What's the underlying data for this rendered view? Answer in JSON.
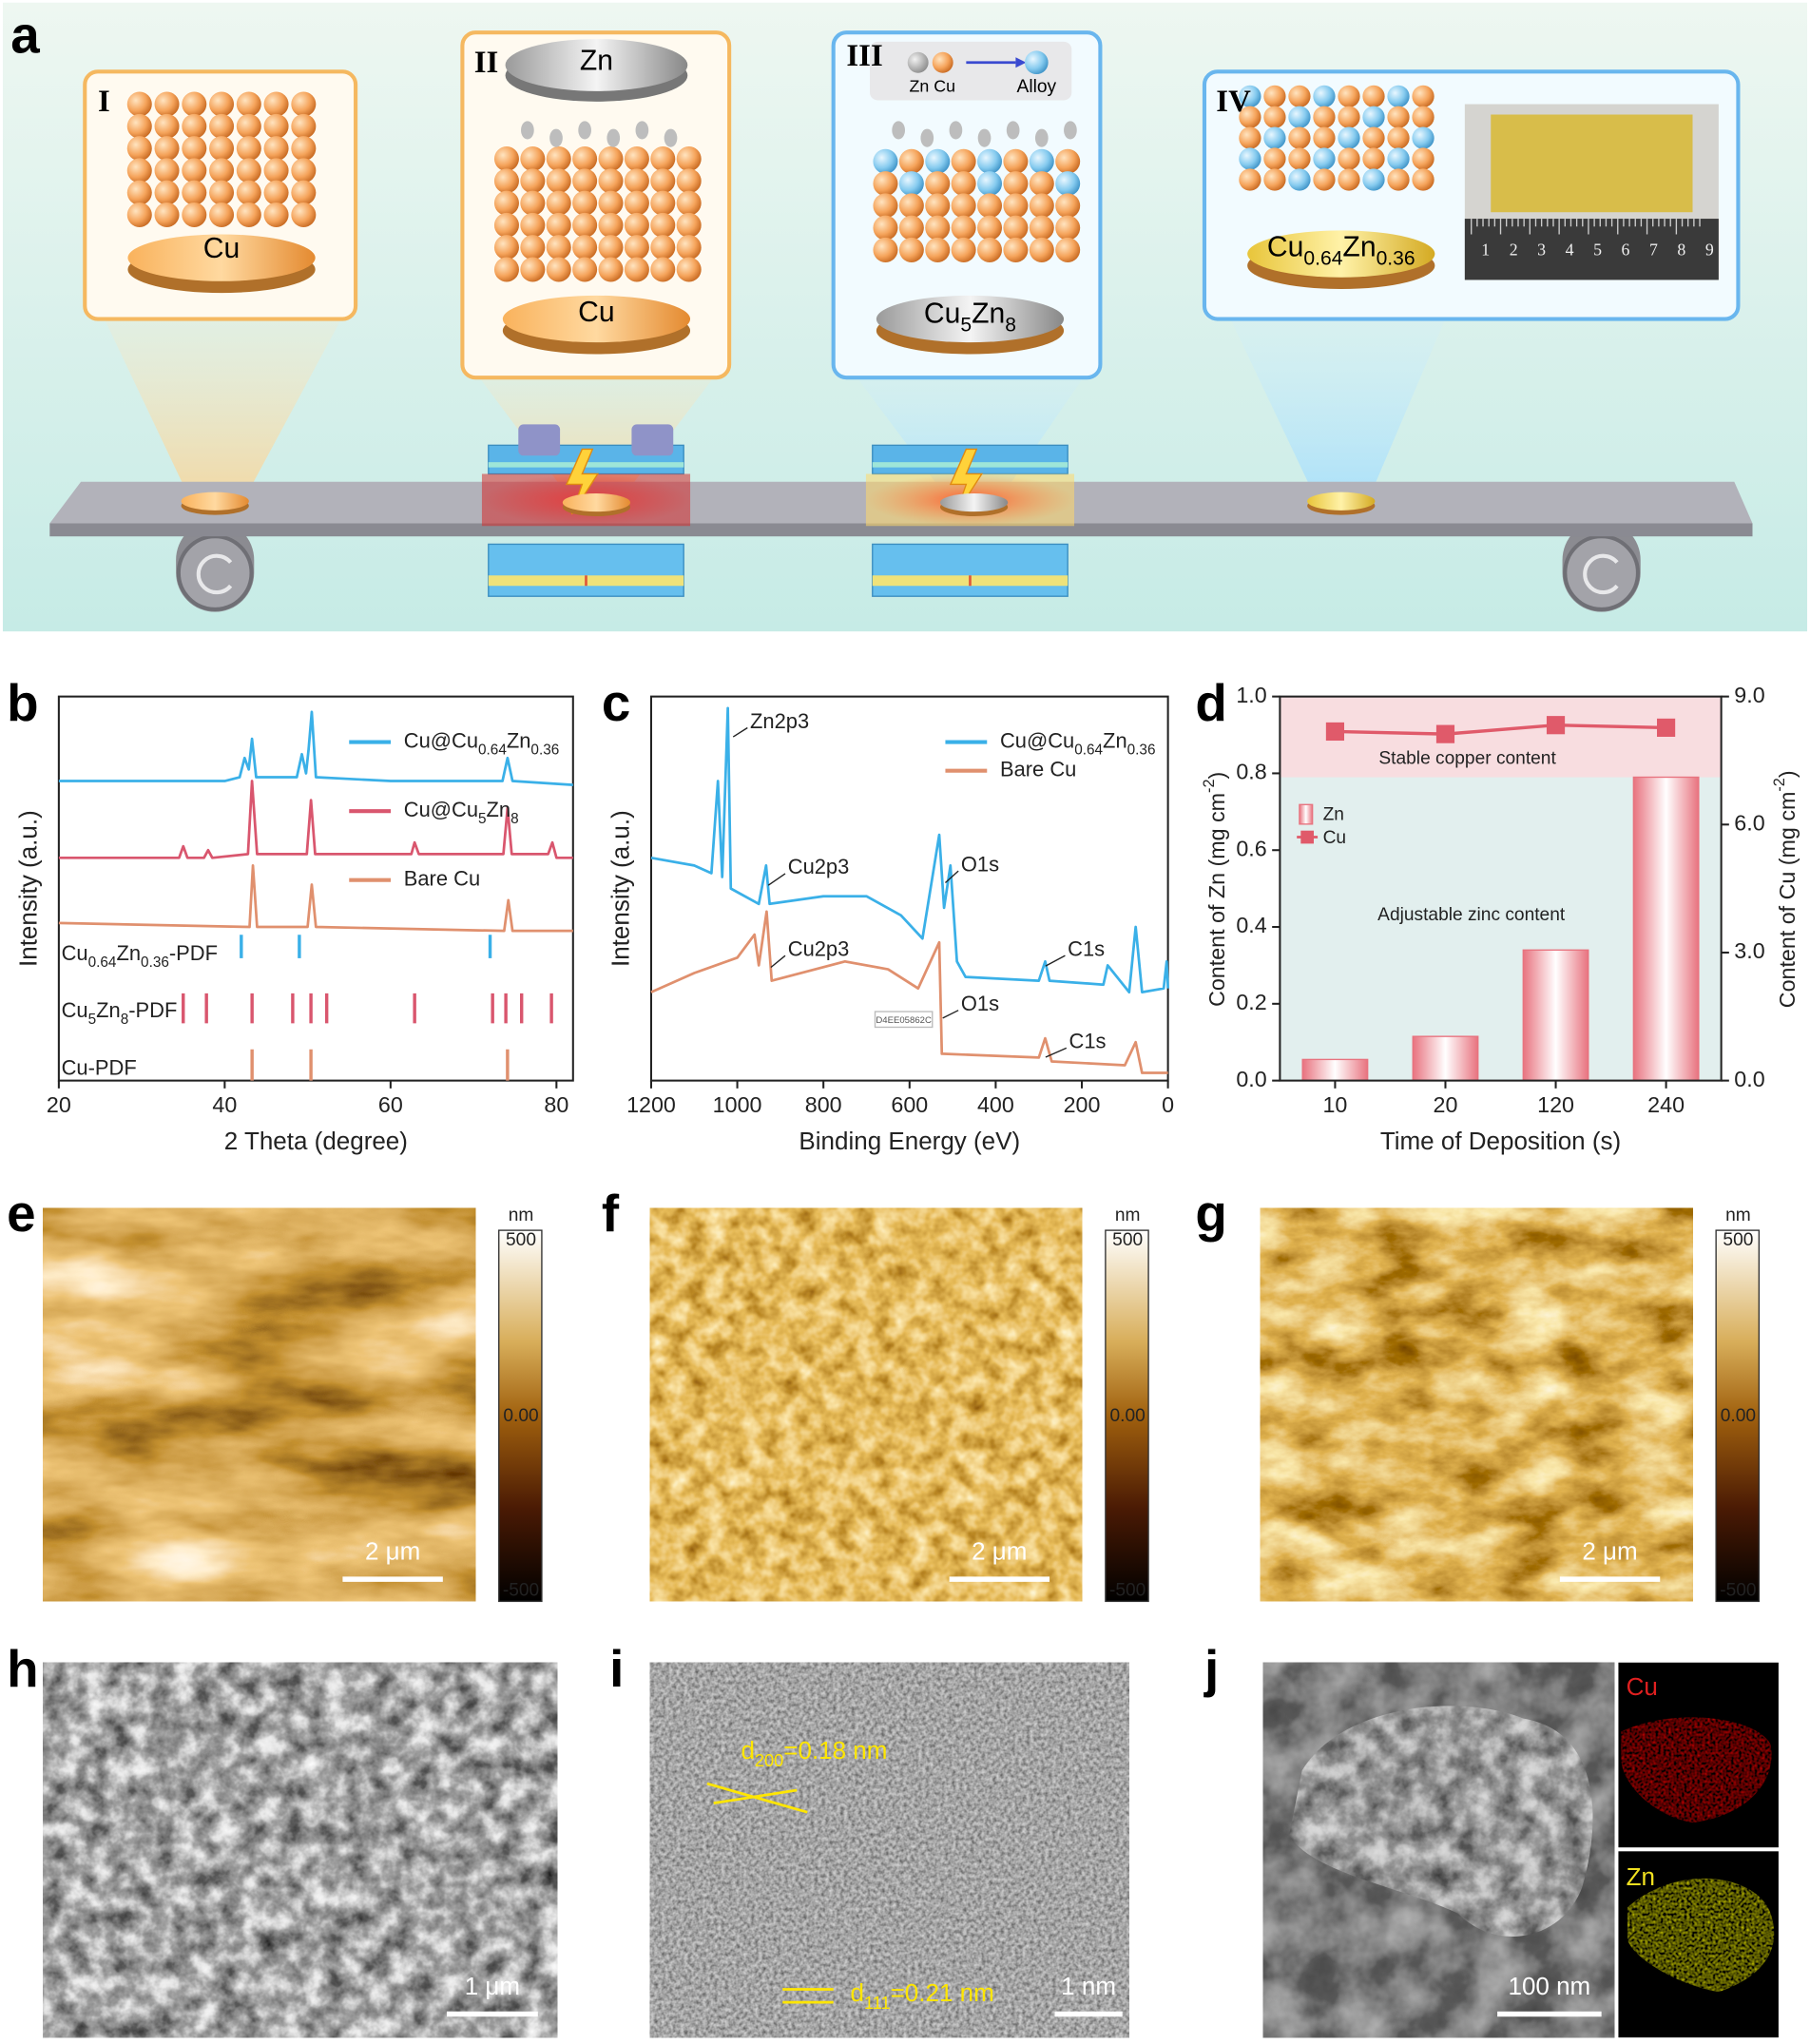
{
  "panel_labels": [
    "a",
    "b",
    "c",
    "d",
    "e",
    "f",
    "g",
    "h",
    "i",
    "j"
  ],
  "schematic": {
    "stages": [
      "I",
      "II",
      "III",
      "IV"
    ],
    "cu_disc": "Cu",
    "zn_target": "Zn",
    "cu_disc_2": "Cu",
    "legend": [
      "Zn Cu",
      "Alloy"
    ],
    "alloy_disc": [
      "Cu",
      "5",
      "Zn",
      "8"
    ],
    "final_disc": [
      "Cu",
      "0.64",
      "Zn",
      "0.36"
    ],
    "ruler": [
      "1",
      "2",
      "3",
      "4",
      "5",
      "6",
      "7",
      "8",
      "9"
    ]
  },
  "chart_data": [
    {
      "type": "line",
      "xlabel": "2 Theta (degree)",
      "ylabel": "Intensity (a.u.)",
      "xlim": [
        20,
        82
      ],
      "xticks": [
        20,
        40,
        60,
        80
      ],
      "ylim": [
        0,
        10
      ],
      "series": [
        {
          "name": [
            "Cu@Cu",
            "0.64",
            "Zn",
            "0.36"
          ],
          "color": "#3ab0e8",
          "x": [
            20,
            30,
            40,
            41.8,
            42.4,
            42.9,
            43.3,
            43.8,
            48.7,
            49.3,
            49.8,
            50.1,
            50.5,
            51.0,
            60,
            73.5,
            74.1,
            74.7,
            82
          ],
          "values": [
            7.8,
            7.8,
            7.8,
            7.9,
            8.4,
            8.1,
            8.9,
            7.9,
            7.9,
            8.5,
            8.0,
            8.6,
            9.6,
            7.9,
            7.8,
            7.8,
            8.4,
            7.8,
            7.7
          ]
        },
        {
          "name": [
            "Cu@Cu",
            "5",
            "Zn",
            "8"
          ],
          "color": "#d9566e",
          "x": [
            20,
            34.5,
            35,
            35.5,
            37.5,
            38,
            38.5,
            42.8,
            43.3,
            43.9,
            49.9,
            50.4,
            50.9,
            62.5,
            62.9,
            63.4,
            73.6,
            74.1,
            74.6,
            79,
            79.5,
            80,
            82
          ],
          "values": [
            5.8,
            5.8,
            6.1,
            5.8,
            5.8,
            6.0,
            5.8,
            5.9,
            7.8,
            5.9,
            5.9,
            7.3,
            5.9,
            5.9,
            6.2,
            5.9,
            5.9,
            7.1,
            5.9,
            5.9,
            6.2,
            5.8,
            5.8
          ]
        },
        {
          "name": [
            "Bare Cu"
          ],
          "color": "#e0906e",
          "x": [
            20,
            43,
            43.4,
            43.9,
            50,
            50.5,
            51,
            73.7,
            74.2,
            74.7,
            82
          ],
          "values": [
            4.1,
            4.0,
            5.6,
            4.0,
            4.0,
            5.1,
            4.0,
            3.9,
            4.7,
            3.9,
            3.9
          ]
        }
      ],
      "reference_patterns": [
        {
          "name": [
            "Cu",
            "0.64",
            "Zn",
            "0.36",
            "-PDF"
          ],
          "color": "#3ab0e8",
          "positions": [
            42.0,
            49.0,
            72.0
          ]
        },
        {
          "name": [
            "Cu",
            "5",
            "Zn",
            "8",
            "-PDF"
          ],
          "color": "#d9566e",
          "positions": [
            35.0,
            37.8,
            43.3,
            48.2,
            50.4,
            52.3,
            62.9,
            72.3,
            73.9,
            75.8,
            79.4
          ]
        },
        {
          "name": [
            "Cu-PDF"
          ],
          "color": "#e0906e",
          "positions": [
            43.3,
            50.4,
            74.1
          ]
        }
      ]
    },
    {
      "type": "line",
      "xlabel": "Binding Energy (eV)",
      "ylabel": "Intensity (a.u.)",
      "xlim": [
        1200,
        0
      ],
      "xticks": [
        1200,
        1000,
        800,
        600,
        400,
        200,
        0
      ],
      "ylim": [
        0,
        10
      ],
      "series": [
        {
          "name": [
            "Cu@Cu",
            "0.64",
            "Zn",
            "0.36"
          ],
          "color": "#3ab0e8",
          "x": [
            1200,
            1100,
            1060,
            1045,
            1035,
            1022,
            1015,
            950,
            933,
            925,
            800,
            700,
            620,
            570,
            531,
            520,
            505,
            490,
            470,
            300,
            285,
            275,
            150,
            140,
            90,
            75,
            60,
            10,
            3,
            0
          ],
          "values": [
            5.8,
            5.6,
            5.4,
            7.8,
            5.3,
            9.7,
            5.0,
            4.6,
            5.6,
            4.6,
            4.8,
            4.8,
            4.3,
            3.7,
            6.4,
            4.5,
            5.6,
            3.1,
            2.7,
            2.6,
            3.1,
            2.6,
            2.5,
            3.0,
            2.3,
            4.0,
            2.3,
            2.4,
            3.1,
            2.4
          ]
        },
        {
          "name": [
            "Bare Cu"
          ],
          "color": "#e0906e",
          "x": [
            1200,
            1100,
            1000,
            960,
            950,
            932,
            920,
            750,
            650,
            580,
            531,
            525,
            300,
            285,
            270,
            100,
            75,
            60,
            0
          ],
          "values": [
            2.3,
            2.8,
            3.2,
            3.8,
            3.0,
            4.4,
            2.6,
            3.1,
            2.9,
            2.4,
            3.6,
            0.7,
            0.6,
            1.1,
            0.5,
            0.4,
            1.0,
            0.2,
            0.2
          ]
        }
      ],
      "annotations": [
        "Zn2p3",
        "Cu2p3",
        "O1s",
        "C1s",
        "Cu2p3",
        "O1s",
        "C1s"
      ],
      "watermark": "D4EE05862C"
    },
    {
      "type": "bar",
      "xlabel": "Time of Deposition (s)",
      "ylabel": [
        "Content of Zn (mg cm",
        "-2",
        ")"
      ],
      "y2label": [
        "Content of Cu (mg cm",
        "-2",
        ")"
      ],
      "categories": [
        "10",
        "20",
        "120",
        "240"
      ],
      "series": [
        {
          "name": "Zn",
          "type": "bar",
          "color": "#e8737f",
          "values": [
            0.055,
            0.115,
            0.34,
            0.79
          ]
        },
        {
          "name": "Cu",
          "type": "line",
          "axis": "y2",
          "color": "#e05a6a",
          "values": [
            8.18,
            8.12,
            8.33,
            8.27
          ]
        }
      ],
      "ylim": [
        0,
        1
      ],
      "yticks": [
        {
          "value": 0,
          "label": "0.0"
        },
        0.2,
        0.4,
        0.6,
        0.8,
        {
          "value": 1,
          "label": "1.0"
        }
      ],
      "y2lim": [
        0,
        9
      ],
      "y2ticks": [
        {
          "value": 0,
          "label": "0.0"
        },
        {
          "value": 3,
          "label": "3.0"
        },
        {
          "value": 6,
          "label": "6.0"
        },
        {
          "value": 9,
          "label": "9.0"
        }
      ],
      "annotations": [
        "Stable copper content",
        "Adjustable zinc content"
      ]
    }
  ],
  "afm": [
    {
      "scale_bar": "2 μm",
      "unit": "nm",
      "colorbar": [
        "500",
        "0.00",
        "-500"
      ]
    },
    {
      "scale_bar": "2 μm",
      "unit": "nm",
      "colorbar": [
        "500",
        "0.00",
        "-500"
      ]
    },
    {
      "scale_bar": "2 μm",
      "unit": "nm",
      "colorbar": [
        "500",
        "0.00",
        "-500"
      ]
    }
  ],
  "sem": {
    "scale_bar": "1 μm"
  },
  "hrtem": {
    "scale_bar": "1 nm",
    "spacings": [
      [
        "d",
        "200",
        "=0.18 nm"
      ],
      [
        "d",
        "111",
        "=0.21 nm"
      ]
    ]
  },
  "eds": {
    "scale_bar": "100 nm",
    "maps": [
      "Cu",
      "Zn"
    ]
  }
}
